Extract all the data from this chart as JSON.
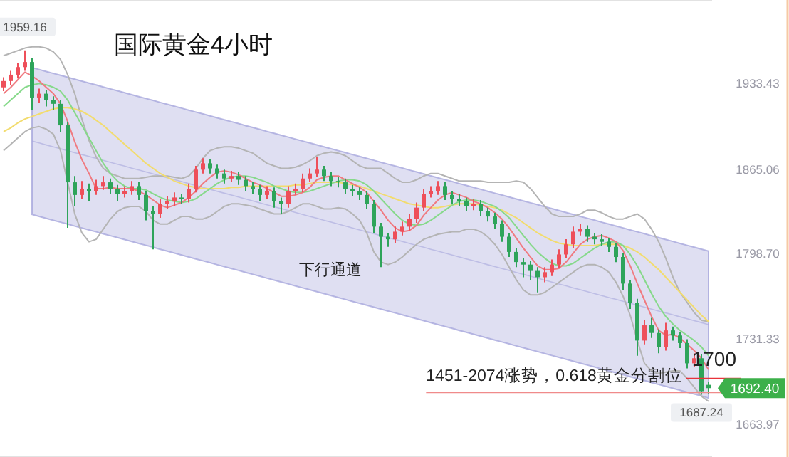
{
  "chart_data": {
    "type": "candlestick",
    "title": "国际黄金4小时",
    "tick_labels": "y",
    "grid": false,
    "ylim": [
      1638,
      1999
    ],
    "yticks": [
      1933.43,
      1865.06,
      {
        "value": 1798.7,
        "label": "1798.70"
      },
      1731.33,
      1663.97
    ],
    "categories": [
      null,
      null,
      null,
      null,
      null,
      null,
      null,
      null,
      null,
      null,
      null,
      null,
      null,
      null,
      null,
      null,
      null,
      null,
      null,
      null,
      null,
      null,
      null,
      null,
      null,
      null,
      null,
      null,
      null,
      null,
      null,
      null,
      null,
      null,
      null,
      null,
      null,
      null,
      null,
      null,
      null,
      null,
      null,
      null,
      null,
      null,
      null,
      null,
      null,
      null,
      null,
      null,
      null,
      null,
      null,
      null,
      null,
      null,
      null,
      null,
      null,
      null,
      null,
      null,
      null,
      null,
      null,
      null,
      null,
      null,
      null,
      null,
      null,
      null,
      null,
      null,
      null,
      null,
      null,
      null,
      null,
      null,
      null,
      null,
      null,
      null,
      null,
      null,
      null,
      null,
      null,
      null,
      null,
      null,
      null,
      null,
      null,
      null,
      null,
      null
    ],
    "ohlc": [
      [
        1930,
        1938,
        1927,
        1935
      ],
      [
        1935,
        1943,
        1932,
        1940
      ],
      [
        1940,
        1949,
        1937,
        1946
      ],
      [
        1946,
        1959.16,
        1943,
        1950
      ],
      [
        1950,
        1953,
        1912,
        1922
      ],
      [
        1922,
        1929,
        1918,
        1925
      ],
      [
        1925,
        1928,
        1915,
        1920
      ],
      [
        1920,
        1923,
        1912,
        1917
      ],
      [
        1917,
        1920,
        1895,
        1900
      ],
      [
        1900,
        1903,
        1819,
        1855
      ],
      [
        1855,
        1860,
        1836,
        1845
      ],
      [
        1845,
        1856,
        1842,
        1850
      ],
      [
        1850,
        1854,
        1840,
        1848
      ],
      [
        1848,
        1857,
        1845,
        1852
      ],
      [
        1852,
        1860,
        1849,
        1855
      ],
      [
        1855,
        1858,
        1846,
        1850
      ],
      [
        1850,
        1853,
        1840,
        1846
      ],
      [
        1846,
        1852,
        1843,
        1848
      ],
      [
        1848,
        1856,
        1845,
        1852
      ],
      [
        1852,
        1855,
        1841,
        1845
      ],
      [
        1845,
        1848,
        1825,
        1832
      ],
      [
        1832,
        1836,
        1802,
        1830
      ],
      [
        1830,
        1842,
        1827,
        1838
      ],
      [
        1838,
        1844,
        1834,
        1840
      ],
      [
        1840,
        1847,
        1836,
        1843
      ],
      [
        1843,
        1846,
        1838,
        1842
      ],
      [
        1842,
        1854,
        1839,
        1850
      ],
      [
        1850,
        1868,
        1847,
        1865
      ],
      [
        1865,
        1874,
        1862,
        1870
      ],
      [
        1870,
        1873,
        1862,
        1866
      ],
      [
        1866,
        1869,
        1858,
        1862
      ],
      [
        1862,
        1865,
        1854,
        1858
      ],
      [
        1858,
        1864,
        1855,
        1860
      ],
      [
        1860,
        1863,
        1853,
        1857
      ],
      [
        1857,
        1860,
        1848,
        1852
      ],
      [
        1852,
        1855,
        1846,
        1850
      ],
      [
        1850,
        1853,
        1840,
        1845
      ],
      [
        1845,
        1852,
        1842,
        1848
      ],
      [
        1848,
        1851,
        1835,
        1840
      ],
      [
        1840,
        1843,
        1830,
        1838
      ],
      [
        1838,
        1852,
        1835,
        1848
      ],
      [
        1848,
        1854,
        1845,
        1850
      ],
      [
        1850,
        1862,
        1847,
        1858
      ],
      [
        1858,
        1866,
        1855,
        1862
      ],
      [
        1862,
        1875,
        1859,
        1865
      ],
      [
        1865,
        1868,
        1856,
        1860
      ],
      [
        1860,
        1863,
        1852,
        1856
      ],
      [
        1856,
        1859,
        1851,
        1855
      ],
      [
        1855,
        1858,
        1846,
        1850
      ],
      [
        1850,
        1853,
        1844,
        1848
      ],
      [
        1848,
        1851,
        1841,
        1845
      ],
      [
        1845,
        1848,
        1834,
        1838
      ],
      [
        1838,
        1841,
        1815,
        1820
      ],
      [
        1820,
        1823,
        1788,
        1812
      ],
      [
        1812,
        1815,
        1804,
        1810
      ],
      [
        1810,
        1820,
        1807,
        1816
      ],
      [
        1816,
        1824,
        1813,
        1820
      ],
      [
        1820,
        1830,
        1817,
        1826
      ],
      [
        1826,
        1839,
        1823,
        1835
      ],
      [
        1835,
        1850,
        1832,
        1846
      ],
      [
        1846,
        1852,
        1843,
        1848
      ],
      [
        1848,
        1856,
        1845,
        1852
      ],
      [
        1852,
        1855,
        1841,
        1845
      ],
      [
        1845,
        1848,
        1838,
        1842
      ],
      [
        1842,
        1846,
        1836,
        1840
      ],
      [
        1840,
        1843,
        1832,
        1836
      ],
      [
        1836,
        1842,
        1833,
        1838
      ],
      [
        1838,
        1841,
        1828,
        1832
      ],
      [
        1832,
        1835,
        1824,
        1828
      ],
      [
        1828,
        1831,
        1818,
        1822
      ],
      [
        1822,
        1825,
        1808,
        1812
      ],
      [
        1812,
        1815,
        1796,
        1800
      ],
      [
        1800,
        1803,
        1788,
        1792
      ],
      [
        1792,
        1795,
        1780,
        1790
      ],
      [
        1790,
        1793,
        1778,
        1785
      ],
      [
        1785,
        1788,
        1768,
        1780
      ],
      [
        1780,
        1788,
        1776,
        1784
      ],
      [
        1784,
        1794,
        1781,
        1790
      ],
      [
        1790,
        1802,
        1787,
        1798
      ],
      [
        1798,
        1810,
        1795,
        1806
      ],
      [
        1806,
        1820,
        1803,
        1816
      ],
      [
        1816,
        1822,
        1813,
        1818
      ],
      [
        1818,
        1821,
        1808,
        1812
      ],
      [
        1812,
        1815,
        1806,
        1810
      ],
      [
        1810,
        1814,
        1805,
        1808
      ],
      [
        1808,
        1811,
        1800,
        1804
      ],
      [
        1804,
        1807,
        1792,
        1796
      ],
      [
        1796,
        1799,
        1770,
        1775
      ],
      [
        1775,
        1778,
        1755,
        1760
      ],
      [
        1760,
        1763,
        1718,
        1730
      ],
      [
        1730,
        1746,
        1727,
        1742
      ],
      [
        1742,
        1748,
        1732,
        1736
      ],
      [
        1736,
        1739,
        1720,
        1725
      ],
      [
        1725,
        1744,
        1722,
        1738
      ],
      [
        1738,
        1741,
        1730,
        1734
      ],
      [
        1734,
        1737,
        1724,
        1728
      ],
      [
        1728,
        1731,
        1708,
        1712
      ],
      [
        1712,
        1720,
        1709,
        1716
      ],
      [
        1716,
        1719,
        1687.24,
        1690
      ],
      [
        1695,
        1697,
        1688,
        1692.4
      ]
    ],
    "colors": [
      "#ee4f5a",
      "#ee4f5a",
      "#ee4f5a",
      "#ee4f5a",
      "#2ea45a",
      "#ee4f5a",
      "#2ea45a",
      "#2ea45a",
      "#2ea45a",
      "#2ea45a",
      "#2ea45a",
      "#ee4f5a",
      "#2ea45a",
      "#ee4f5a",
      "#ee4f5a",
      "#2ea45a",
      "#2ea45a",
      "#ee4f5a",
      "#ee4f5a",
      "#2ea45a",
      "#2ea45a",
      "#2ea45a",
      "#ee4f5a",
      "#ee4f5a",
      "#ee4f5a",
      "#2ea45a",
      "#ee4f5a",
      "#ee4f5a",
      "#ee4f5a",
      "#2ea45a",
      "#2ea45a",
      "#2ea45a",
      "#ee4f5a",
      "#2ea45a",
      "#2ea45a",
      "#2ea45a",
      "#2ea45a",
      "#ee4f5a",
      "#2ea45a",
      "#2ea45a",
      "#ee4f5a",
      "#ee4f5a",
      "#ee4f5a",
      "#ee4f5a",
      "#ee4f5a",
      "#2ea45a",
      "#2ea45a",
      "#2ea45a",
      "#2ea45a",
      "#2ea45a",
      "#2ea45a",
      "#2ea45a",
      "#2ea45a",
      "#2ea45a",
      "#2ea45a",
      "#ee4f5a",
      "#ee4f5a",
      "#ee4f5a",
      "#ee4f5a",
      "#ee4f5a",
      "#ee4f5a",
      "#ee4f5a",
      "#2ea45a",
      "#2ea45a",
      "#2ea45a",
      "#2ea45a",
      "#ee4f5a",
      "#2ea45a",
      "#2ea45a",
      "#2ea45a",
      "#2ea45a",
      "#2ea45a",
      "#2ea45a",
      "#2ea45a",
      "#2ea45a",
      "#2ea45a",
      "#ee4f5a",
      "#ee4f5a",
      "#ee4f5a",
      "#ee4f5a",
      "#ee4f5a",
      "#ee4f5a",
      "#2ea45a",
      "#2ea45a",
      "#2ea45a",
      "#2ea45a",
      "#2ea45a",
      "#2ea45a",
      "#2ea45a",
      "#2ea45a",
      "#ee4f5a",
      "#2ea45a",
      "#2ea45a",
      "#ee4f5a",
      "#2ea45a",
      "#2ea45a",
      "#2ea45a",
      "#ee4f5a",
      "#2ea45a",
      "#2ea45a"
    ],
    "series": [
      {
        "type": "line",
        "color": "#a6a6dc",
        "values": [
          null,
          null,
          null,
          null,
          1887.6,
          1886.1,
          1884.5,
          1883.0,
          1881.5,
          1880.0,
          1878.4,
          1876.9,
          1875.4,
          1873.9,
          1872.3,
          1870.8,
          1869.3,
          1867.8,
          1866.2,
          1864.7,
          1863.2,
          1861.7,
          1860.1,
          1858.6,
          1857.1,
          1855.6,
          1854.0,
          1852.5,
          1851.0,
          1849.5,
          1847.9,
          1846.4,
          1844.9,
          1843.4,
          1841.8,
          1840.3,
          1838.8,
          1837.2,
          1835.7,
          1834.2,
          1832.7,
          1831.1,
          1829.6,
          1828.1,
          1826.6,
          1825.0,
          1823.5,
          1822.0,
          1820.5,
          1818.9,
          1817.4,
          1815.9,
          1814.4,
          1812.8,
          1811.3,
          1809.8,
          1808.3,
          1806.7,
          1805.2,
          1803.7,
          1802.1,
          1800.6,
          1799.1,
          1797.6,
          1796.0,
          1794.5,
          1793.0,
          1791.5,
          1789.9,
          1788.4,
          1786.9,
          1785.4,
          1783.8,
          1782.3,
          1780.8,
          1779.3,
          1777.7,
          1776.2,
          1774.7,
          1773.2,
          1771.6,
          1770.1,
          1768.6,
          1767.1,
          1765.5,
          1764.0,
          1762.5,
          1761.0,
          1759.4,
          1757.9,
          1756.4,
          1754.8,
          1753.3,
          1751.8,
          1750.3,
          1748.7,
          1747.2,
          1745.7,
          1744.2,
          1742.6
        ],
        "upper": [
          null,
          null,
          null,
          null,
          1945.6,
          1944.1,
          1942.5,
          1941.0,
          1939.5,
          1938.0,
          1936.4,
          1934.9,
          1933.4,
          1931.9,
          1930.3,
          1928.8,
          1927.3,
          1925.8,
          1924.2,
          1922.7,
          1921.2,
          1919.7,
          1918.1,
          1916.6,
          1915.1,
          1913.6,
          1912.0,
          1910.5,
          1909.0,
          1907.5,
          1905.9,
          1904.4,
          1902.9,
          1901.4,
          1899.8,
          1898.3,
          1896.8,
          1895.2,
          1893.7,
          1892.2,
          1890.7,
          1889.1,
          1887.6,
          1886.1,
          1884.6,
          1883.0,
          1881.5,
          1880.0,
          1878.5,
          1876.9,
          1875.4,
          1873.9,
          1872.4,
          1870.8,
          1869.3,
          1867.8,
          1866.3,
          1864.7,
          1863.2,
          1861.7,
          1860.1,
          1858.6,
          1857.1,
          1855.6,
          1854.0,
          1852.5,
          1851.0,
          1849.5,
          1847.9,
          1846.4,
          1844.9,
          1843.4,
          1841.8,
          1840.3,
          1838.8,
          1837.3,
          1835.7,
          1834.2,
          1832.7,
          1831.2,
          1829.6,
          1828.1,
          1826.6,
          1825.1,
          1823.5,
          1822.0,
          1820.5,
          1819.0,
          1817.4,
          1815.9,
          1814.4,
          1812.8,
          1811.3,
          1809.8,
          1808.3,
          1806.7,
          1805.2,
          1803.7,
          1802.2,
          1800.6
        ],
        "lower": [
          null,
          null,
          null,
          null,
          1829.6,
          1828.1,
          1826.5,
          1825.0,
          1823.5,
          1822.0,
          1820.4,
          1818.9,
          1817.4,
          1815.9,
          1814.3,
          1812.8,
          1811.3,
          1809.8,
          1808.2,
          1806.7,
          1805.2,
          1803.7,
          1802.1,
          1800.6,
          1799.1,
          1797.6,
          1796.0,
          1794.5,
          1793.0,
          1791.5,
          1789.9,
          1788.4,
          1786.9,
          1785.4,
          1783.8,
          1782.3,
          1780.8,
          1779.2,
          1777.7,
          1776.2,
          1774.7,
          1773.1,
          1771.6,
          1770.1,
          1768.6,
          1767.0,
          1765.5,
          1764.0,
          1762.5,
          1760.9,
          1759.4,
          1757.9,
          1756.4,
          1754.8,
          1753.3,
          1751.8,
          1750.3,
          1748.7,
          1747.2,
          1745.7,
          1744.1,
          1742.6,
          1741.1,
          1739.6,
          1738.0,
          1736.5,
          1735.0,
          1733.5,
          1731.9,
          1730.4,
          1728.9,
          1727.4,
          1725.8,
          1724.3,
          1722.8,
          1721.3,
          1719.7,
          1718.2,
          1716.7,
          1715.2,
          1713.6,
          1712.1,
          1710.6,
          1709.1,
          1707.5,
          1706.0,
          1704.5,
          1703.0,
          1701.4,
          1699.9,
          1698.4,
          1696.8,
          1695.3,
          1693.8,
          1692.3,
          1690.7,
          1689.2,
          1687.7,
          1686.2,
          1684.6
        ]
      },
      {
        "type": "line",
        "color": "#b4b4b4",
        "values": [
          1955,
          1957,
          1959,
          1961,
          1962,
          1962,
          1961,
          1958,
          1952,
          1940,
          1925,
          1905,
          1888,
          1875,
          1866,
          1862,
          1860,
          1858,
          1858,
          1858,
          1859,
          1860,
          1860,
          1860,
          1859,
          1858,
          1860,
          1866,
          1874,
          1880,
          1882,
          1883,
          1883,
          1882,
          1880,
          1878,
          1874,
          1870,
          1868,
          1866,
          1866,
          1867,
          1869,
          1872,
          1876,
          1878,
          1879,
          1878,
          1876,
          1872,
          1868,
          1866,
          1866,
          1866,
          1862,
          1858,
          1855,
          1855,
          1857,
          1860,
          1862,
          1862,
          1860,
          1858,
          1856,
          1856,
          1856,
          1856,
          1855,
          1855,
          1855,
          1855,
          1856,
          1855,
          1850,
          1843,
          1836,
          1830,
          1828,
          1828,
          1828,
          1830,
          1833,
          1833,
          1831,
          1828,
          1826,
          1826,
          1828,
          1830,
          1826,
          1818,
          1808,
          1795,
          1780,
          1768,
          1760,
          1752,
          1746,
          1745
        ]
      },
      {
        "type": "line",
        "color": "#b4b4b4",
        "values": [
          1880,
          1885,
          1890,
          1895,
          1898,
          1899,
          1897,
          1893,
          1880,
          1855,
          1830,
          1815,
          1808,
          1810,
          1818,
          1826,
          1832,
          1835,
          1836,
          1836,
          1832,
          1825,
          1822,
          1822,
          1825,
          1828,
          1828,
          1826,
          1826,
          1828,
          1832,
          1836,
          1838,
          1838,
          1837,
          1836,
          1834,
          1832,
          1830,
          1830,
          1832,
          1835,
          1838,
          1838,
          1836,
          1834,
          1834,
          1835,
          1834,
          1830,
          1825,
          1815,
          1800,
          1792,
          1790,
          1792,
          1796,
          1801,
          1806,
          1810,
          1812,
          1814,
          1815,
          1816,
          1816,
          1818,
          1818,
          1816,
          1812,
          1806,
          1798,
          1788,
          1778,
          1770,
          1766,
          1766,
          1768,
          1772,
          1776,
          1780,
          1784,
          1788,
          1790,
          1790,
          1788,
          1784,
          1776,
          1765,
          1750,
          1730,
          1712,
          1706,
          1704,
          1705,
          1706,
          1706,
          1700,
          1693,
          1686,
          1682
        ]
      },
      {
        "type": "line",
        "color": "#f2dc6e",
        "values": [
          1895,
          1898,
          1902,
          1905,
          1907,
          1909,
          1911,
          1913,
          1914,
          1914,
          1913,
          1911,
          1908,
          1904,
          1900,
          1895,
          1890,
          1885,
          1880,
          1875,
          1870,
          1866,
          1862,
          1859,
          1856,
          1854,
          1852,
          1851,
          1850,
          1850,
          1850,
          1850,
          1851,
          1851,
          1852,
          1852,
          1852,
          1852,
          1852,
          1852,
          1852,
          1853,
          1853,
          1854,
          1855,
          1855,
          1855,
          1855,
          1854,
          1853,
          1852,
          1850,
          1848,
          1846,
          1844,
          1842,
          1840,
          1838,
          1837,
          1836,
          1835,
          1835,
          1836,
          1837,
          1838,
          1838,
          1838,
          1837,
          1836,
          1835,
          1833,
          1830,
          1827,
          1823,
          1819,
          1815,
          1812,
          1809,
          1807,
          1806,
          1805,
          1805,
          1805,
          1805,
          1806,
          1806,
          1806,
          1805,
          1803,
          1800,
          1796,
          1791,
          1786,
          1780,
          1774,
          1768,
          1762,
          1756,
          1750,
          1745
        ]
      },
      {
        "type": "line",
        "color": "#86d98a",
        "values": [
          1915,
          1920,
          1925,
          1930,
          1932,
          1933,
          1932,
          1930,
          1927,
          1920,
          1910,
          1900,
          1890,
          1880,
          1870,
          1862,
          1856,
          1852,
          1850,
          1850,
          1849,
          1846,
          1843,
          1841,
          1840,
          1839,
          1840,
          1842,
          1846,
          1850,
          1854,
          1857,
          1859,
          1860,
          1860,
          1859,
          1857,
          1855,
          1852,
          1850,
          1848,
          1847,
          1847,
          1848,
          1850,
          1852,
          1854,
          1856,
          1857,
          1857,
          1856,
          1853,
          1848,
          1842,
          1836,
          1830,
          1825,
          1822,
          1821,
          1822,
          1825,
          1829,
          1833,
          1837,
          1840,
          1841,
          1841,
          1840,
          1838,
          1836,
          1832,
          1827,
          1820,
          1813,
          1806,
          1800,
          1795,
          1791,
          1789,
          1789,
          1791,
          1795,
          1799,
          1803,
          1806,
          1808,
          1808,
          1805,
          1798,
          1789,
          1778,
          1767,
          1757,
          1749,
          1743,
          1738,
          1734,
          1730,
          1725,
          1718
        ]
      },
      {
        "type": "line",
        "color": "#f07a80",
        "values": [
          1925,
          1930,
          1936,
          1942,
          1939,
          1935,
          1930,
          1925,
          1917,
          1903,
          1887,
          1873,
          1862,
          1850,
          1850,
          1851,
          1850,
          1850,
          1850,
          1848,
          1845,
          1841,
          1837,
          1835,
          1837,
          1839,
          1843,
          1848,
          1854,
          1859,
          1863,
          1864,
          1863,
          1861,
          1858,
          1855,
          1853,
          1850,
          1847,
          1844,
          1844,
          1845,
          1847,
          1851,
          1857,
          1859,
          1860,
          1860,
          1857,
          1854,
          1851,
          1847,
          1840,
          1833,
          1825,
          1819,
          1816,
          1817,
          1821,
          1829,
          1835,
          1841,
          1845,
          1847,
          1845,
          1843,
          1840,
          1838,
          1835,
          1831,
          1826,
          1819,
          1811,
          1803,
          1796,
          1789,
          1786,
          1786,
          1787,
          1792,
          1799,
          1806,
          1810,
          1812,
          1813,
          1811,
          1808,
          1801,
          1789,
          1775,
          1762,
          1749,
          1738,
          1734,
          1735,
          1732,
          1727,
          1722,
          1716,
          1707
        ]
      }
    ],
    "ref_lines": [
      {
        "axis": "y",
        "value": 1700,
        "label": "1700",
        "color": "#e8333a"
      },
      {
        "axis": "y",
        "value": 1689,
        "label": "1451-2074涨势，0.618黄金分割位",
        "color": "#f08a8a"
      }
    ],
    "annotations": [
      "下行通道",
      {
        "text": "1959.16",
        "y": 1959.16
      },
      {
        "text": "1687.24",
        "y": 1687.24
      },
      "1692.40"
    ]
  }
}
